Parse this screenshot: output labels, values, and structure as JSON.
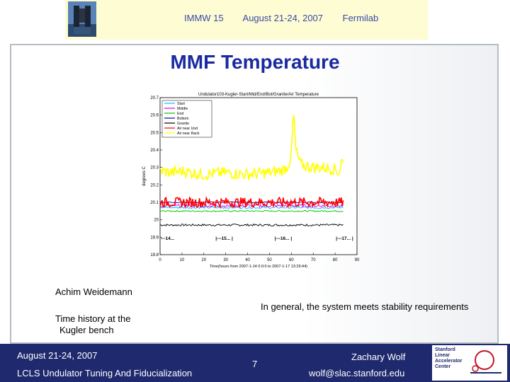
{
  "header": {
    "conference": "IMMW 15",
    "dates": "August 21-24, 2007",
    "venue": "Fermilab"
  },
  "slide": {
    "title": "MMF Temperature",
    "credit": "Achim Weidemann",
    "caption_line1": "Time history at the",
    "caption_line2": "Kugler bench",
    "conclusion": "In general, the system meets stability requirements"
  },
  "footer": {
    "date": "August 21-24, 2007",
    "project": "LCLS Undulator Tuning And Fiducialization",
    "page": "7",
    "author": "Zachary Wolf",
    "email": "wolf@slac.stanford.edu",
    "logo_text": [
      "Stanford",
      "Linear",
      "Accelerator",
      "Center"
    ]
  },
  "chart_data": {
    "type": "line",
    "title": "Undulator103-Kugler-Start/Mid/End/Bot/Granite/Air Temperature",
    "xlabel": "Time(hours from 2007-1-14 0:0:0 to 2007-1-17 13:29:44)",
    "ylabel": "degrees C",
    "xlim": [
      0,
      90
    ],
    "ylim": [
      19.8,
      20.7
    ],
    "xticks": [
      0,
      10,
      20,
      30,
      40,
      50,
      60,
      70,
      80,
      90
    ],
    "xtick_labels": [
      "0",
      "10",
      "20",
      "30",
      "40",
      "50",
      "60",
      "70",
      "80",
      "90"
    ],
    "yticks": [
      19.8,
      19.9,
      20.0,
      20.1,
      20.2,
      20.3,
      20.4,
      20.5,
      20.6,
      20.7
    ],
    "ytick_labels": [
      "19.8",
      "19.9",
      "20",
      "20.1",
      "20.2",
      "20.3",
      "20.4",
      "20.5",
      "20.6",
      "20.7"
    ],
    "legend_position": "top-left",
    "day_markers": [
      {
        "x": 0,
        "label": "---14..."
      },
      {
        "x": 25,
        "label": "|---15...   |"
      },
      {
        "x": 52,
        "label": "|---16...   |"
      },
      {
        "x": 80,
        "label": "|---17...   |"
      }
    ],
    "series": [
      {
        "name": "Start",
        "color": "#00bfff",
        "x": [
          0,
          84
        ],
        "y": [
          20.07,
          20.07
        ]
      },
      {
        "name": "Middle",
        "color": "#e000e0",
        "x": [
          0,
          84
        ],
        "y": [
          20.08,
          20.08
        ]
      },
      {
        "name": "End",
        "color": "#00c000",
        "x": [
          0,
          84
        ],
        "y": [
          20.05,
          20.05
        ]
      },
      {
        "name": "Bottom",
        "color": "#0000c0",
        "x": [
          0,
          84
        ],
        "y": [
          20.1,
          20.1
        ]
      },
      {
        "name": "Granite",
        "color": "#000000",
        "x": [
          0,
          84
        ],
        "y": [
          19.97,
          19.97
        ]
      },
      {
        "name": "Air near Und",
        "color": "#ff0000",
        "x": [
          0,
          84
        ],
        "y": [
          20.1,
          20.1
        ]
      },
      {
        "name": "Air near Rack",
        "color": "#ffff00",
        "x": [
          0,
          5,
          10,
          20,
          30,
          40,
          50,
          55,
          58,
          60,
          61,
          62,
          64,
          66,
          70,
          75,
          80,
          82,
          83,
          84
        ],
        "y": [
          20.28,
          20.27,
          20.28,
          20.26,
          20.27,
          20.26,
          20.27,
          20.28,
          20.3,
          20.36,
          20.63,
          20.4,
          20.32,
          20.31,
          20.3,
          20.3,
          20.29,
          20.27,
          20.35,
          20.3
        ]
      }
    ]
  },
  "colors": {
    "title": "#1a2aa0",
    "footer_bg": "#1f2a6e",
    "header_bg": "#fefcd2"
  }
}
